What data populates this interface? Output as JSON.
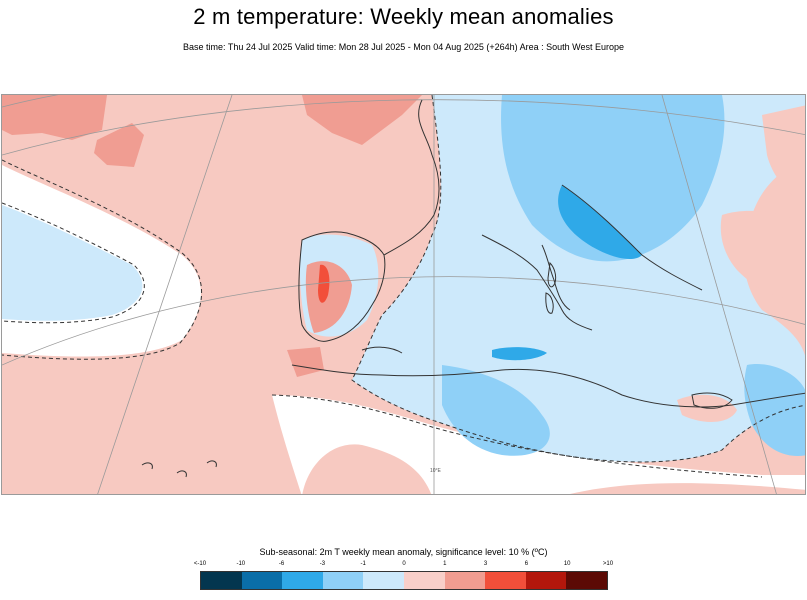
{
  "header": {
    "title": "2 m temperature: Weekly mean anomalies",
    "subtitle": "Base time: Thu 24 Jul 2025 Valid time: Mon 28 Jul 2025 - Mon 04 Aug 2025 (+264h) Area : South West Europe"
  },
  "map": {
    "region": "South West Europe",
    "graticule_labels": [
      "10°E"
    ]
  },
  "legend": {
    "title": "Sub-seasonal: 2m T weekly mean anomaly, significance level: 10 % (ºC)",
    "ticks": [
      "<-10",
      "-10",
      "-6",
      "-3",
      "-1",
      "0",
      "1",
      "3",
      "6",
      "10",
      ">10"
    ],
    "colors": [
      "#03364f",
      "#0a6ea8",
      "#2fa9e8",
      "#8fd0f7",
      "#cde9fb",
      "#f8cfc9",
      "#f19d91",
      "#f24f3a",
      "#b3170c",
      "#5c0a05"
    ]
  }
}
